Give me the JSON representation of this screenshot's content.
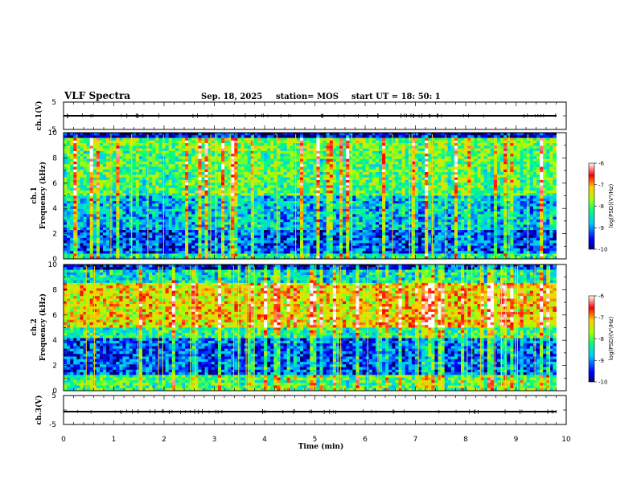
{
  "chart_data": {
    "type": "heatmap",
    "title": "VLF Spectra",
    "date": "Sep. 18, 2025",
    "station": "station= MOS",
    "start_ut": "start  UT =   18: 50: 1",
    "xlabel": "Time  (min)",
    "xlim": [
      0,
      10
    ],
    "x_ticks": [
      "0",
      "1",
      "2",
      "3",
      "4",
      "5",
      "6",
      "7",
      "8",
      "9",
      "10"
    ],
    "panels": [
      {
        "name": "ch1-waveform",
        "ylabel": "ch.1(V)",
        "ylim": [
          -5,
          5
        ],
        "y_ticks": [
          "5",
          "-5"
        ],
        "trace_value": 0
      },
      {
        "name": "ch1-spectrogram",
        "ylabel_top": "ch.1",
        "ylabel": "Frequency  (kHz)",
        "ylim": [
          0,
          10
        ],
        "y_ticks": [
          "0",
          "2",
          "4",
          "6",
          "8",
          "10"
        ],
        "data_end_min": 9.8,
        "colorbar": {
          "label": "log(PSD)(V²/Hz)",
          "range": [
            -10,
            -6
          ],
          "ticks": [
            "-6",
            "-7",
            "-8",
            "-9",
            "-10"
          ]
        }
      },
      {
        "name": "ch2-spectrogram",
        "ylabel_top": "ch.2",
        "ylabel": "Frequency  (kHz)",
        "ylim": [
          0,
          10
        ],
        "y_ticks": [
          "0",
          "2",
          "4",
          "6",
          "8",
          "10"
        ],
        "data_end_min": 9.8,
        "colorbar": {
          "label": "log(PSD)(V²/Hz)",
          "range": [
            -10,
            -6
          ],
          "ticks": [
            "-6",
            "-7",
            "-8",
            "-9",
            "-10"
          ]
        }
      },
      {
        "name": "ch3-waveform",
        "ylabel": "ch.3(V)",
        "ylim": [
          -5,
          5
        ],
        "y_ticks": [
          "5",
          "-5"
        ],
        "trace_value": 0
      }
    ]
  }
}
